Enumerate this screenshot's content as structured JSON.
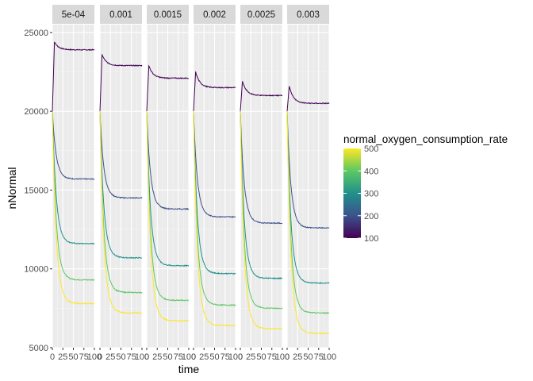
{
  "chart_data": {
    "type": "line",
    "xlabel": "time",
    "ylabel": "nNormal",
    "xlim": [
      0,
      100
    ],
    "ylim": [
      5000,
      25500
    ],
    "x_ticks": [
      0,
      25,
      50,
      75,
      100
    ],
    "y_ticks": [
      5000,
      10000,
      15000,
      20000,
      25000
    ],
    "y_tick_labels": [
      "5000",
      "10000",
      "15000",
      "20000",
      "25000"
    ],
    "grid": true,
    "panel_background": "#ebebeb",
    "strip_background": "#d9d9d9",
    "facet_variable": "facet",
    "facets": [
      {
        "label": "5e-04",
        "series": [
          {
            "rate": 100,
            "start": 20000,
            "end": 23900,
            "peak": 24400
          },
          {
            "rate": 200,
            "start": 20000,
            "end": 15700
          },
          {
            "rate": 300,
            "start": 20000,
            "end": 11600
          },
          {
            "rate": 400,
            "start": 20000,
            "end": 9300
          },
          {
            "rate": 500,
            "start": 20000,
            "end": 7800
          }
        ]
      },
      {
        "label": "0.001",
        "series": [
          {
            "rate": 100,
            "start": 20000,
            "end": 22900,
            "peak": 23600
          },
          {
            "rate": 200,
            "start": 20000,
            "end": 14500
          },
          {
            "rate": 300,
            "start": 20000,
            "end": 10700
          },
          {
            "rate": 400,
            "start": 20000,
            "end": 8500
          },
          {
            "rate": 500,
            "start": 20000,
            "end": 7200
          }
        ]
      },
      {
        "label": "0.0015",
        "series": [
          {
            "rate": 100,
            "start": 20000,
            "end": 22100,
            "peak": 22900
          },
          {
            "rate": 200,
            "start": 20000,
            "end": 13800
          },
          {
            "rate": 300,
            "start": 20000,
            "end": 10200
          },
          {
            "rate": 400,
            "start": 20000,
            "end": 8000
          },
          {
            "rate": 500,
            "start": 20000,
            "end": 6700
          }
        ]
      },
      {
        "label": "0.002",
        "series": [
          {
            "rate": 100,
            "start": 20000,
            "end": 21500,
            "peak": 22500
          },
          {
            "rate": 200,
            "start": 20000,
            "end": 13300
          },
          {
            "rate": 300,
            "start": 20000,
            "end": 9700
          },
          {
            "rate": 400,
            "start": 20000,
            "end": 7700
          },
          {
            "rate": 500,
            "start": 20000,
            "end": 6400
          }
        ]
      },
      {
        "label": "0.0025",
        "series": [
          {
            "rate": 100,
            "start": 20000,
            "end": 21000,
            "peak": 21900
          },
          {
            "rate": 200,
            "start": 20000,
            "end": 12900
          },
          {
            "rate": 300,
            "start": 20000,
            "end": 9400
          },
          {
            "rate": 400,
            "start": 20000,
            "end": 7500
          },
          {
            "rate": 500,
            "start": 20000,
            "end": 6200
          }
        ]
      },
      {
        "label": "0.003",
        "series": [
          {
            "rate": 100,
            "start": 20000,
            "end": 20500,
            "peak": 21600
          },
          {
            "rate": 200,
            "start": 20000,
            "end": 12600
          },
          {
            "rate": 300,
            "start": 20000,
            "end": 9100
          },
          {
            "rate": 400,
            "start": 20000,
            "end": 7200
          },
          {
            "rate": 500,
            "start": 20000,
            "end": 5900
          }
        ]
      }
    ],
    "legend": {
      "title": "normal_oxygen_consumption_rate",
      "placement": "right",
      "type": "colorbar",
      "range": [
        100,
        500
      ],
      "breaks": [
        100,
        200,
        300,
        400,
        500
      ],
      "break_labels": [
        "100",
        "200",
        "300",
        "400",
        "500"
      ],
      "palette": "viridis",
      "colors": [
        "#440154",
        "#3b528b",
        "#21908c",
        "#5dc863",
        "#fde725"
      ]
    }
  }
}
